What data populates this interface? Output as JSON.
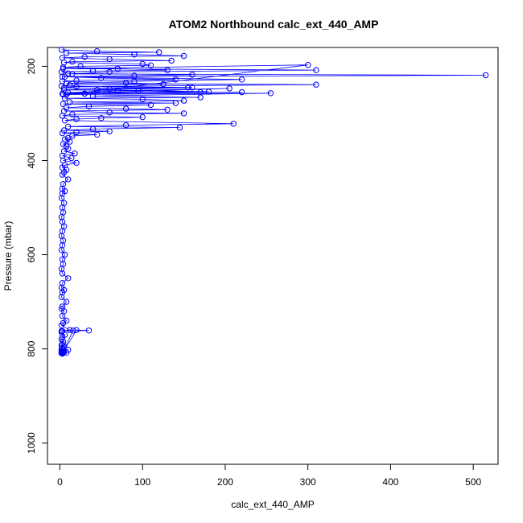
{
  "chart_data": {
    "type": "line",
    "title": "ATOM2 Northbound calc_ext_440_AMP",
    "xlabel": "calc_ext_440_AMP",
    "ylabel": "Pressure (mbar)",
    "xlim": [
      -15,
      530
    ],
    "ylim": [
      1045,
      160
    ],
    "y_reversed": true,
    "grid": false,
    "legend": "none",
    "marker": "open-circle",
    "color": "#0000ff",
    "x_ticks": [
      0,
      100,
      200,
      300,
      400,
      500
    ],
    "x_tick_labels": [
      "0",
      "100",
      "200",
      "300",
      "400",
      "500"
    ],
    "y_ticks": [
      200,
      400,
      600,
      800,
      1000
    ],
    "y_tick_labels": [
      "200",
      "400",
      "600",
      "800",
      "1000"
    ],
    "series": [
      {
        "x": [
          2,
          45,
          120,
          8,
          90,
          150,
          30,
          3,
          60,
          135,
          15,
          5,
          100,
          110,
          25,
          4,
          70,
          130,
          40,
          2,
          10,
          160,
          90,
          6,
          50,
          140,
          20,
          3,
          80,
          125,
          12,
          2,
          155,
          60,
          5,
          95,
          170,
          30,
          8,
          300,
          4,
          310,
          60,
          15,
          515,
          3,
          220,
          90,
          8,
          310,
          20,
          5,
          160,
          45,
          180,
          3,
          205,
          70,
          10,
          220,
          30,
          4,
          255,
          40,
          170,
          6,
          100,
          150,
          12,
          140,
          4,
          110,
          35,
          8,
          80,
          130,
          5,
          60,
          150,
          15,
          3,
          100,
          50,
          20,
          6,
          210,
          80,
          10,
          145,
          40,
          5,
          60,
          20,
          3,
          45,
          15,
          10,
          6,
          12,
          4,
          8,
          10,
          5,
          18,
          3,
          14,
          4,
          20,
          6,
          3,
          8,
          5,
          3,
          10,
          4,
          3,
          6,
          3,
          2,
          5,
          3,
          4,
          2,
          3,
          5,
          3,
          2,
          4,
          3,
          2,
          6,
          3,
          4,
          2,
          3,
          10,
          3,
          2,
          5,
          3,
          2,
          8,
          3,
          2,
          5,
          3,
          8,
          4,
          2,
          12,
          3,
          2,
          6,
          3,
          2,
          4,
          3,
          2,
          5,
          3,
          2,
          10,
          3,
          2,
          5,
          3,
          8,
          2,
          3,
          16,
          2,
          35,
          20,
          3,
          2,
          4,
          3,
          2,
          3,
          2
        ],
        "y": [
          165,
          168,
          170,
          172,
          175,
          178,
          180,
          182,
          185,
          188,
          190,
          192,
          195,
          198,
          200,
          202,
          205,
          208,
          210,
          212,
          215,
          218,
          220,
          222,
          225,
          228,
          230,
          232,
          235,
          238,
          240,
          242,
          245,
          248,
          250,
          252,
          255,
          258,
          260,
          197,
          205,
          208,
          212,
          216,
          219,
          222,
          228,
          232,
          236,
          239,
          243,
          246,
          245,
          250,
          254,
          258,
          247,
          252,
          256,
          255,
          258,
          260,
          257,
          263,
          266,
          268,
          270,
          273,
          276,
          278,
          280,
          282,
          285,
          288,
          290,
          292,
          295,
          298,
          300,
          302,
          305,
          308,
          310,
          312,
          315,
          322,
          325,
          328,
          330,
          333,
          336,
          338,
          340,
          342,
          345,
          348,
          352,
          355,
          360,
          365,
          370,
          375,
          380,
          385,
          390,
          395,
          400,
          405,
          410,
          415,
          420,
          425,
          430,
          440,
          450,
          460,
          465,
          470,
          480,
          490,
          500,
          510,
          520,
          530,
          540,
          550,
          560,
          570,
          580,
          590,
          600,
          610,
          620,
          630,
          640,
          650,
          660,
          670,
          675,
          680,
          690,
          700,
          710,
          715,
          720,
          730,
          740,
          745,
          750,
          760,
          762,
          765,
          770,
          775,
          780,
          785,
          790,
          792,
          795,
          798,
          800,
          802,
          805,
          806,
          807,
          808,
          808,
          809,
          809,
          761,
          762,
          761,
          760,
          810,
          809,
          808,
          808,
          807,
          806,
          805
        ]
      }
    ]
  }
}
